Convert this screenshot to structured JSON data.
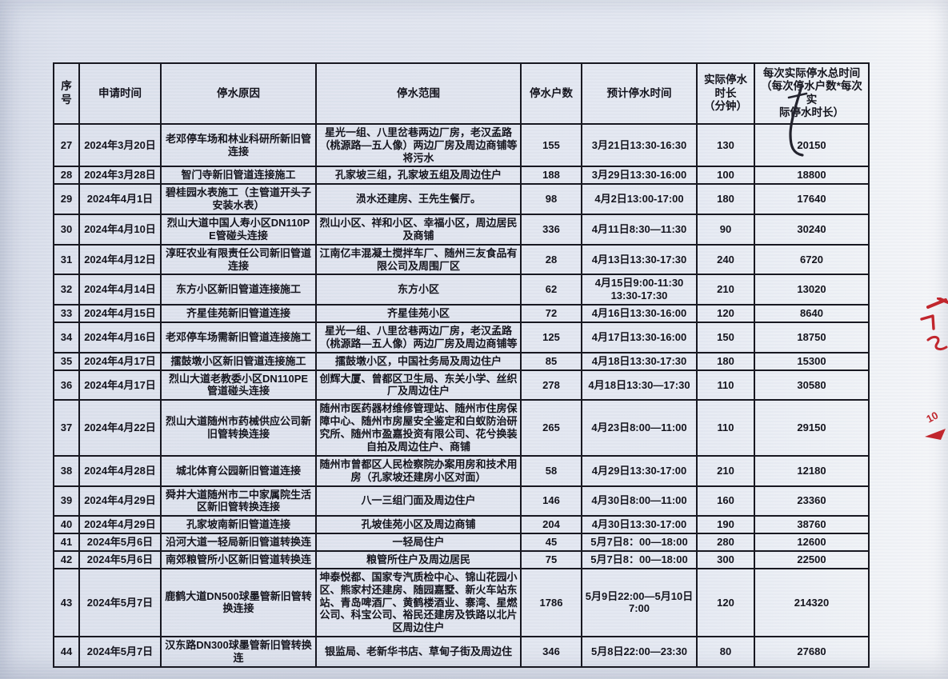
{
  "document": {
    "kind": "扫描的停水记录表",
    "paper_color": "#e1e5ef",
    "ink_color": "#14141d",
    "annotation_red": "#c1262d"
  },
  "table": {
    "headers": [
      "序\n号",
      "申请时间",
      "停水原因",
      "停水范围",
      "停水户数",
      "预计停水时间",
      "实际停水\n时长\n（分钟）",
      "每次实际停水总时间\n（每次停水户数*每次实\n际停水时长）"
    ],
    "rows": [
      {
        "no": "27",
        "applied": "2024年3月20日",
        "reason": "老邓停车场和林业科研所新旧管连接",
        "scope": "星光一组、八里岔巷两边厂房，老汉孟路（桃源路—五人像）两边厂房及周边商铺等将污水",
        "households": "155",
        "planned": "3月21日13:30-16:30",
        "minutes": "130",
        "total": "20150"
      },
      {
        "no": "28",
        "applied": "2024年3月28日",
        "reason": "智门寺新旧管道连接施工",
        "scope": "孔家坡三组，孔家坡五组及周边住户",
        "households": "188",
        "planned": "3月29日13:30-16:00",
        "minutes": "100",
        "total": "18800"
      },
      {
        "no": "29",
        "applied": "2024年4月1日",
        "reason": "碧桂园水表施工（主管道开头子安装水表）",
        "scope": "涢水还建房、王先生餐厅。",
        "households": "98",
        "planned": "4月2日13:00-17:00",
        "minutes": "180",
        "total": "17640"
      },
      {
        "no": "30",
        "applied": "2024年4月10日",
        "reason": "烈山大道中国人寿小区DN110PE管碰头连接",
        "scope": "烈山小区、祥和小区、幸福小区，周边居民及商铺",
        "households": "336",
        "planned": "4月11日8:30—11:30",
        "minutes": "90",
        "total": "30240"
      },
      {
        "no": "31",
        "applied": "2024年4月12日",
        "reason": "淳旺农业有限责任公司新旧管道连接",
        "scope": "江南亿丰混凝土搅拌车厂、随州三友食品有限公司及周围厂区",
        "households": "28",
        "planned": "4月13日13:30-17:30",
        "minutes": "240",
        "total": "6720"
      },
      {
        "no": "32",
        "applied": "2024年4月14日",
        "reason": "东方小区新旧管道连接施工",
        "scope": "东方小区",
        "households": "62",
        "planned": "4月15日9:00-11:30\n13:30-17:30",
        "minutes": "210",
        "total": "13020"
      },
      {
        "no": "33",
        "applied": "2024年4月15日",
        "reason": "齐星佳苑新旧管道连接",
        "scope": "齐星佳苑小区",
        "households": "72",
        "planned": "4月16日13:30-16:00",
        "minutes": "120",
        "total": "8640"
      },
      {
        "no": "34",
        "applied": "2024年4月16日",
        "reason": "老邓停车场需新旧管道连接施工",
        "scope": "星光一组、八里岔巷两边厂房，老汉孟路（桃源路—五人像）两边厂房及周边商铺等",
        "households": "125",
        "planned": "4月17日13:30-16:00",
        "minutes": "150",
        "total": "18750"
      },
      {
        "no": "35",
        "applied": "2024年4月17日",
        "reason": "擂鼓墩小区新旧管道连接施工",
        "scope": "擂鼓墩小区，中国社务局及周边住户",
        "households": "85",
        "planned": "4月18日13:30-17:30",
        "minutes": "180",
        "total": "15300"
      },
      {
        "no": "36",
        "applied": "2024年4月17日",
        "reason": "烈山大道老教委小区DN110PE管道碰头连接",
        "scope": "创辉大厦、曾都区卫生局、东关小学、丝织厂及周边住户",
        "households": "278",
        "planned": "4月18日13:30—17:30",
        "minutes": "110",
        "total": "30580"
      },
      {
        "no": "37",
        "applied": "2024年4月22日",
        "reason": "烈山大道随州市药械供应公司新旧管转换连接",
        "scope": "随州市医药器材维修管理站、随州市住房保障中心、随州市房屋安全鉴定和白蚁防治研究所、随州市盈嘉投资有限公司、花兮换装自拍及周边住户、商铺",
        "households": "265",
        "planned": "4月23日8:00—11:00",
        "minutes": "110",
        "total": "29150"
      },
      {
        "no": "38",
        "applied": "2024年4月28日",
        "reason": "城北体育公园新旧管道连接",
        "scope": "随州市曾都区人民检察院办案用房和技术用房（孔家坡还建房小区对面）",
        "households": "58",
        "planned": "4月29日13:30-17:00",
        "minutes": "210",
        "total": "12180"
      },
      {
        "no": "39",
        "applied": "2024年4月29日",
        "reason": "舜井大道随州市二中家属院生活区新旧管转换连接",
        "scope": "八一三组门面及周边住户",
        "households": "146",
        "planned": "4月30日8:00—11:00",
        "minutes": "160",
        "total": "23360"
      },
      {
        "no": "40",
        "applied": "2024年4月29日",
        "reason": "孔家坡南新旧管道连接",
        "scope": "孔坡佳苑小区及周边商铺",
        "households": "204",
        "planned": "4月30日13:30-17:00",
        "minutes": "190",
        "total": "38760"
      },
      {
        "no": "41",
        "applied": "2024年5月6日",
        "reason": "沿河大道一轻局新旧管道转换连",
        "scope": "一轻局住户",
        "households": "45",
        "planned": "5月7日8：00—18:00",
        "minutes": "280",
        "total": "12600"
      },
      {
        "no": "42",
        "applied": "2024年5月6日",
        "reason": "南郊粮管所小区新旧管道转换连",
        "scope": "粮管所住户及周边居民",
        "households": "75",
        "planned": "5月7日8：00—18:00",
        "minutes": "300",
        "total": "22500"
      },
      {
        "no": "43",
        "applied": "2024年5月7日",
        "reason": "鹿鹤大道DN500球墨管新旧管转换连接",
        "scope": "坤泰悦都、国家专汽质检中心、锦山花园小区、熊家村还建房、随园嘉墅、新火车站东站、青岛啤酒厂、黄鹤楼酒业、寨湾、星燃公司、科宝公司、裕民还建房及铁路以北片区周边住户",
        "households": "1786",
        "planned": "5月9日22:00—5月10日7:00",
        "minutes": "120",
        "total": "214320"
      },
      {
        "no": "44",
        "applied": "2024年5月7日",
        "reason": "汉东路DN300球墨管新旧管转换连",
        "scope": "银监局、老新华书店、草甸子街及周边住",
        "households": "346",
        "planned": "5月8日22:00—23:30",
        "minutes": "80",
        "total": "27680"
      }
    ]
  },
  "annotations": {
    "red_number": "10"
  }
}
